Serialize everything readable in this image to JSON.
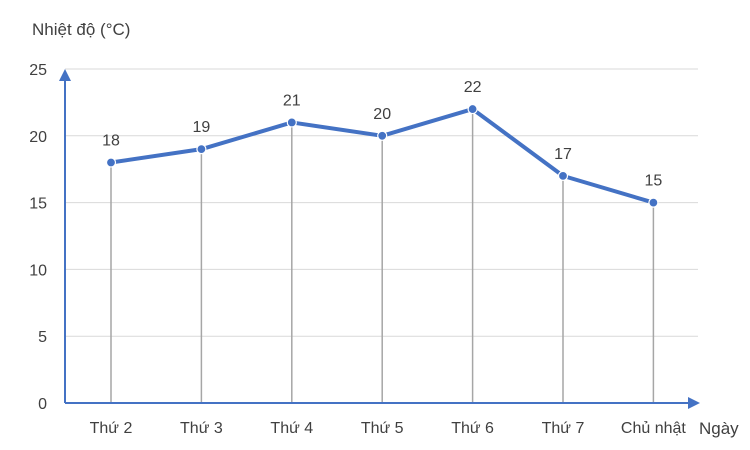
{
  "chart_data": {
    "type": "line",
    "title": "",
    "ylabel": "Nhiệt độ (°C)",
    "xlabel": "Ngày",
    "categories": [
      "Thứ 2",
      "Thứ 3",
      "Thứ 4",
      "Thứ 5",
      "Thứ 6",
      "Thứ 7",
      "Chủ nhật"
    ],
    "yticks": [
      "0",
      "5",
      "10",
      "15",
      "20",
      "25"
    ],
    "ylim": [
      0,
      25
    ],
    "series": [
      {
        "values": [
          18,
          19,
          21,
          20,
          22,
          17,
          15
        ],
        "color": "#4472c4"
      }
    ],
    "data_labels": [
      "18",
      "19",
      "21",
      "20",
      "22",
      "17",
      "15"
    ],
    "grid": true,
    "drop_lines": true,
    "legend": "none"
  }
}
